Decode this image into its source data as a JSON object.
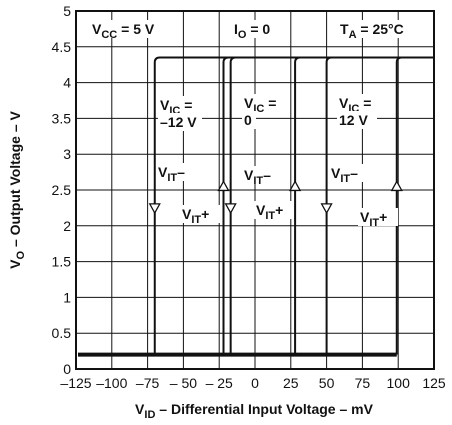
{
  "chart_data": {
    "type": "line",
    "xlabel": "V_ID – Differential Input Voltage – mV",
    "ylabel": "V_O – Output Voltage – V",
    "xlim": [
      -125,
      125
    ],
    "ylim": [
      0,
      5
    ],
    "x_ticks": [
      -125,
      -100,
      -75,
      -50,
      -25,
      0,
      25,
      50,
      75,
      100,
      125
    ],
    "x_tick_labels": [
      "–125",
      "–100",
      "–75",
      "– 50",
      "– 25",
      "0",
      "25",
      "50",
      "75",
      "100",
      "125"
    ],
    "y_ticks": [
      0,
      0.5,
      1,
      1.5,
      2,
      2.5,
      3,
      3.5,
      4,
      4.5,
      5
    ],
    "y_tick_labels": [
      "0",
      "0.5",
      "1",
      "1.5",
      "2",
      "2.5",
      "3",
      "3.5",
      "4",
      "4.5",
      "5"
    ],
    "grid": true,
    "low_level": 0.2,
    "high_level": 4.35,
    "conditions": {
      "vcc": "V_CC = 5 V",
      "io": "I_O = 0",
      "ta": "T_A = 25°C"
    },
    "series": [
      {
        "name": "V_IC = –12 V",
        "vit_minus": -70,
        "vit_plus": -22
      },
      {
        "name": "V_IC = 0",
        "vit_minus": -17,
        "vit_plus": 28
      },
      {
        "name": "V_IC = 12 V",
        "vit_minus": 50,
        "vit_plus": 99
      }
    ],
    "labels": {
      "vic_neg12_a": "V_IC =",
      "vic_neg12_b": "–12 V",
      "vic_0_a": "V_IC =",
      "vic_0_b": "0",
      "vic_12_a": "V_IC =",
      "vic_12_b": "12 V",
      "vit_minus": "V_IT–",
      "vit_plus": "V_IT+"
    }
  }
}
